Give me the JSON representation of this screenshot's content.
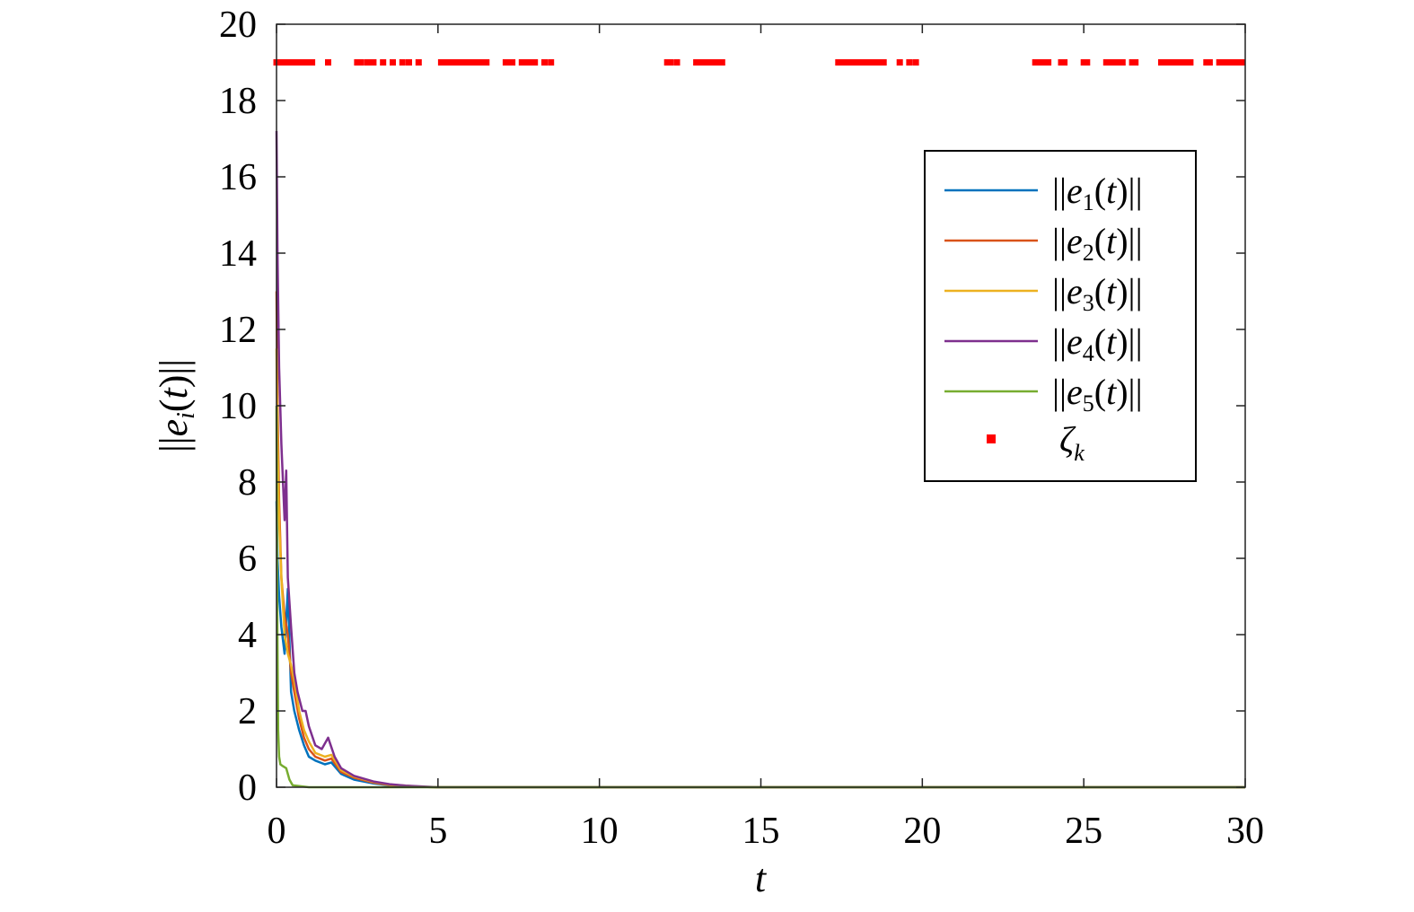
{
  "chart_data": {
    "type": "line",
    "title": "",
    "xlabel": "t",
    "ylabel": "||e_i(t)||",
    "xlim": [
      0,
      30
    ],
    "ylim": [
      0,
      20
    ],
    "xticks": [
      0,
      5,
      10,
      15,
      20,
      25,
      30
    ],
    "yticks": [
      0,
      2,
      4,
      6,
      8,
      10,
      12,
      14,
      16,
      18,
      20
    ],
    "grid": false,
    "legend_position": "top-right",
    "series": [
      {
        "name": "||e_1(t)||",
        "color": "#0072BD",
        "x": [
          0,
          0.03,
          0.08,
          0.15,
          0.25,
          0.35,
          0.45,
          0.55,
          0.7,
          0.85,
          1.0,
          1.2,
          1.5,
          1.7,
          2.0,
          2.4,
          3.0,
          3.5,
          4.0,
          4.5,
          5.0,
          10,
          15,
          20,
          25,
          30
        ],
        "values": [
          7.5,
          6.0,
          5.0,
          4.2,
          3.5,
          5.2,
          2.5,
          2.0,
          1.5,
          1.1,
          0.8,
          0.7,
          0.6,
          0.65,
          0.35,
          0.2,
          0.1,
          0.05,
          0.03,
          0.01,
          0,
          0,
          0,
          0,
          0,
          0
        ]
      },
      {
        "name": "||e_2(t)||",
        "color": "#D95319",
        "x": [
          0,
          0.03,
          0.08,
          0.15,
          0.25,
          0.35,
          0.45,
          0.55,
          0.7,
          0.85,
          1.0,
          1.2,
          1.5,
          1.7,
          2.0,
          2.4,
          3.0,
          3.5,
          4.0,
          4.5,
          5.0,
          10,
          15,
          20,
          25,
          30
        ],
        "values": [
          13.0,
          10.0,
          7.5,
          5.5,
          4.5,
          4.0,
          3.0,
          2.5,
          1.8,
          1.3,
          1.0,
          0.8,
          0.7,
          0.75,
          0.4,
          0.25,
          0.12,
          0.06,
          0.03,
          0.01,
          0,
          0,
          0,
          0,
          0,
          0
        ]
      },
      {
        "name": "||e_3(t)||",
        "color": "#EDB120",
        "x": [
          0,
          0.03,
          0.08,
          0.15,
          0.25,
          0.35,
          0.45,
          0.55,
          0.7,
          0.85,
          1.0,
          1.2,
          1.5,
          1.7,
          2.0,
          2.4,
          3.0,
          3.5,
          4.0,
          4.5,
          5.0,
          10,
          15,
          20,
          25,
          30
        ],
        "values": [
          11.5,
          9.0,
          7.0,
          5.5,
          4.0,
          3.5,
          3.2,
          2.8,
          2.0,
          1.5,
          1.2,
          0.9,
          0.8,
          0.85,
          0.45,
          0.28,
          0.14,
          0.07,
          0.04,
          0.01,
          0,
          0,
          0,
          0,
          0,
          0
        ]
      },
      {
        "name": "||e_4(t)||",
        "color": "#7E2F8E",
        "x": [
          0,
          0.03,
          0.08,
          0.15,
          0.25,
          0.3,
          0.35,
          0.45,
          0.55,
          0.65,
          0.8,
          0.9,
          1.0,
          1.2,
          1.4,
          1.6,
          1.8,
          2.0,
          2.4,
          3.0,
          3.5,
          4.0,
          4.5,
          5.0,
          10,
          15,
          20,
          25,
          30
        ],
        "values": [
          17.2,
          14.0,
          11.0,
          9.0,
          7.0,
          8.3,
          5.5,
          4.2,
          3.0,
          2.5,
          2.0,
          2.0,
          1.6,
          1.1,
          1.0,
          1.3,
          0.8,
          0.5,
          0.3,
          0.15,
          0.08,
          0.04,
          0.02,
          0,
          0,
          0,
          0,
          0,
          0
        ]
      },
      {
        "name": "||e_5(t)||",
        "color": "#77AC30",
        "x": [
          0,
          0.02,
          0.05,
          0.08,
          0.12,
          0.2,
          0.3,
          0.4,
          0.5,
          1.0,
          5.0,
          10,
          15,
          20,
          25,
          30
        ],
        "values": [
          10.0,
          5.0,
          1.5,
          0.8,
          0.6,
          0.55,
          0.5,
          0.2,
          0.05,
          0,
          0,
          0,
          0,
          0,
          0,
          0
        ]
      }
    ],
    "events": {
      "name": "ζ_k",
      "color": "#FF0000",
      "y": 19,
      "x": [
        0,
        0.1,
        0.2,
        0.3,
        0.4,
        0.5,
        0.6,
        0.7,
        0.8,
        0.9,
        1.0,
        1.1,
        1.6,
        2.5,
        2.6,
        2.8,
        2.9,
        3.0,
        3.3,
        3.6,
        3.9,
        4.1,
        4.4,
        5.1,
        5.2,
        5.3,
        5.4,
        5.5,
        5.6,
        5.7,
        5.8,
        5.9,
        6.0,
        6.1,
        6.2,
        6.3,
        6.4,
        6.5,
        7.1,
        7.2,
        7.3,
        7.6,
        7.7,
        7.8,
        7.9,
        8.0,
        8.3,
        8.5,
        12.1,
        12.2,
        12.4,
        13.0,
        13.1,
        13.2,
        13.3,
        13.4,
        13.5,
        13.6,
        13.7,
        13.8,
        17.4,
        17.5,
        17.6,
        17.7,
        17.8,
        17.9,
        18.0,
        18.1,
        18.2,
        18.3,
        18.4,
        18.5,
        18.6,
        18.7,
        18.8,
        19.3,
        19.6,
        19.8,
        23.5,
        23.6,
        23.7,
        23.8,
        23.9,
        24.3,
        24.4,
        25.0,
        25.1,
        25.7,
        25.8,
        25.9,
        26.0,
        26.1,
        26.2,
        26.5,
        26.6,
        27.4,
        27.5,
        27.6,
        27.7,
        27.8,
        27.9,
        28.0,
        28.1,
        28.2,
        28.3,
        28.8,
        28.9,
        29.2,
        29.3,
        29.4,
        29.5,
        29.6,
        29.7,
        29.8,
        29.9
      ]
    }
  }
}
